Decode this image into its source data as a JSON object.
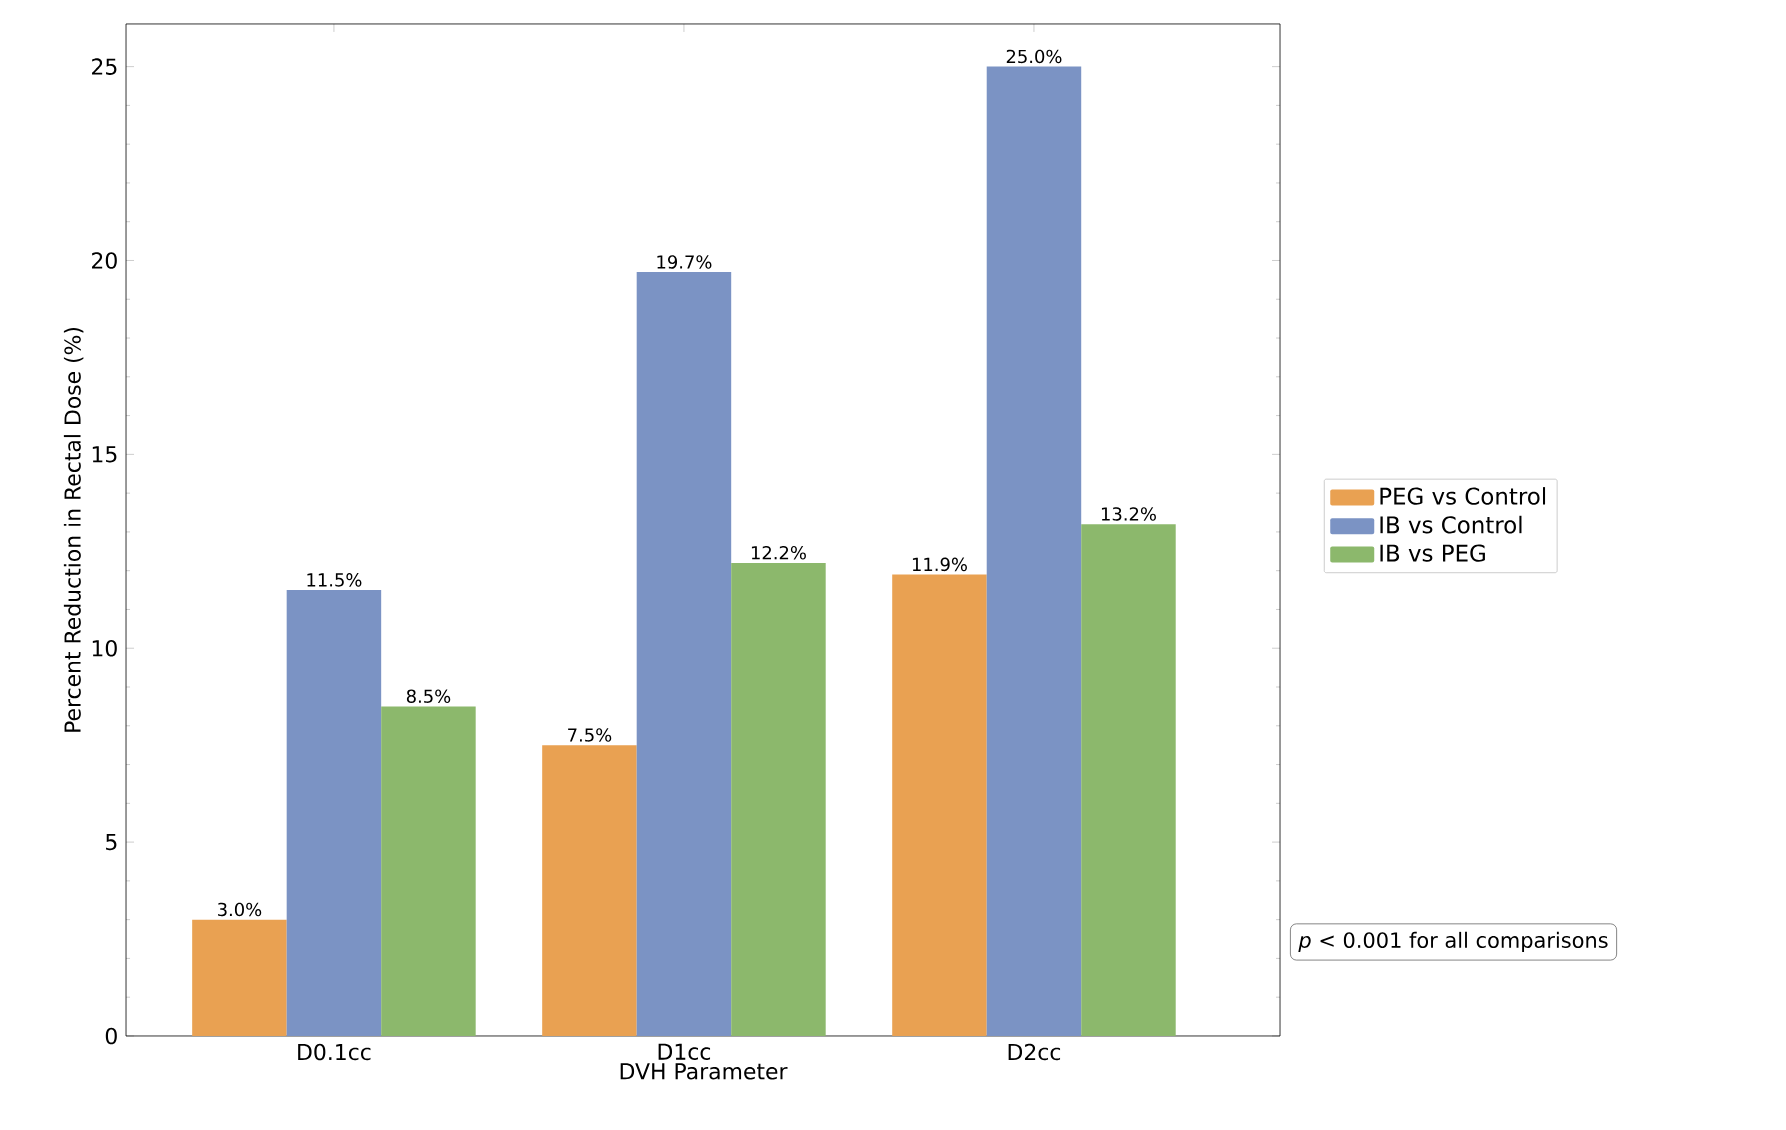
{
  "chart_data": {
    "type": "bar",
    "xlabel": "DVH Parameter",
    "ylabel": "Percent Reduction in Rectal Dose (%)",
    "categories": [
      "D0.1cc",
      "D1cc",
      "D2cc"
    ],
    "series": [
      {
        "name": "PEG vs Control",
        "color": "#e9a152",
        "values": [
          3.0,
          7.5,
          11.9
        ],
        "value_labels": [
          "3.0%",
          "7.5%",
          "11.9%"
        ]
      },
      {
        "name": "IB vs Control",
        "color": "#7b93c4",
        "values": [
          11.5,
          19.7,
          25.0
        ],
        "value_labels": [
          "11.5%",
          "19.7%",
          "25.0%"
        ]
      },
      {
        "name": "IB vs PEG",
        "color": "#8cb86c",
        "values": [
          8.5,
          12.2,
          13.2
        ],
        "value_labels": [
          "8.5%",
          "12.2%",
          "13.2%"
        ]
      }
    ],
    "ylim": [
      0,
      26.1
    ],
    "yticks": [
      0,
      5,
      10,
      15,
      20,
      25
    ],
    "grid": false,
    "legend": "right",
    "annotations": [
      "*p* < 0.001 for all comparisons"
    ]
  }
}
